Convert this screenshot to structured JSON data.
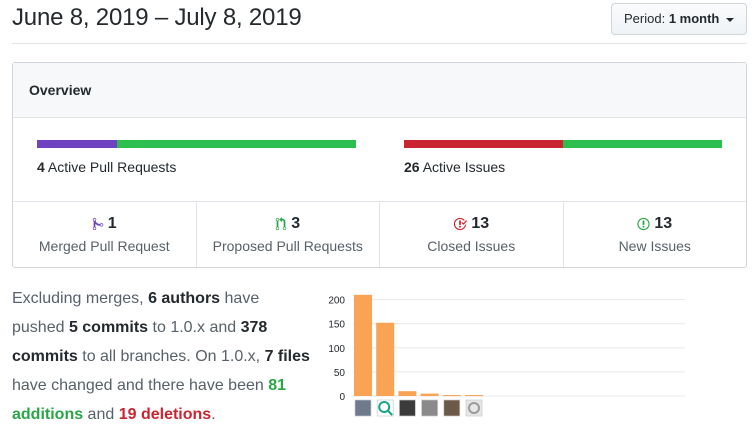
{
  "header": {
    "date_range": "June 8, 2019 – July 8, 2019",
    "period_label": "Period:",
    "period_value": "1 month"
  },
  "overview": {
    "title": "Overview",
    "pull_requests": {
      "count": "4",
      "label": "Active Pull Requests",
      "merged_fraction": 0.25,
      "colors": [
        "#6f42c1",
        "#2cbe4e"
      ]
    },
    "issues": {
      "count": "26",
      "label": "Active Issues",
      "closed_fraction": 0.5,
      "colors": [
        "#cb2431",
        "#2cbe4e"
      ]
    },
    "stats": [
      {
        "num": "1",
        "label": "Merged Pull Request",
        "icon": "merge-icon",
        "color": "#6f42c1"
      },
      {
        "num": "3",
        "label": "Proposed Pull Requests",
        "icon": "pull-request-icon",
        "color": "#28a745"
      },
      {
        "num": "13",
        "label": "Closed Issues",
        "icon": "issue-closed-icon",
        "color": "#cb2431"
      },
      {
        "num": "13",
        "label": "New Issues",
        "icon": "issue-opened-icon",
        "color": "#28a745"
      }
    ]
  },
  "summary": {
    "t1": "Excluding merges, ",
    "authors": "6 authors",
    "t2": " have pushed ",
    "commits_branch": "5 commits",
    "t3": " to 1.0.x and ",
    "commits_all": "378 commits",
    "t4": " to all branches. On 1.0.x, ",
    "files": "7 files",
    "t5": " have changed and there have been ",
    "additions": "81 additions",
    "t6": " and ",
    "deletions": "19 deletions",
    "t7": "."
  },
  "chart_data": {
    "type": "bar",
    "categories": [
      "contributor-1",
      "contributor-2",
      "contributor-3",
      "contributor-4",
      "contributor-5",
      "contributor-6"
    ],
    "values": [
      210,
      152,
      10,
      5,
      2,
      2
    ],
    "ylim": [
      0,
      220
    ],
    "yticks": [
      "0",
      "50",
      "100",
      "150",
      "200"
    ],
    "bar_color": "#f9a354",
    "grid": true
  }
}
